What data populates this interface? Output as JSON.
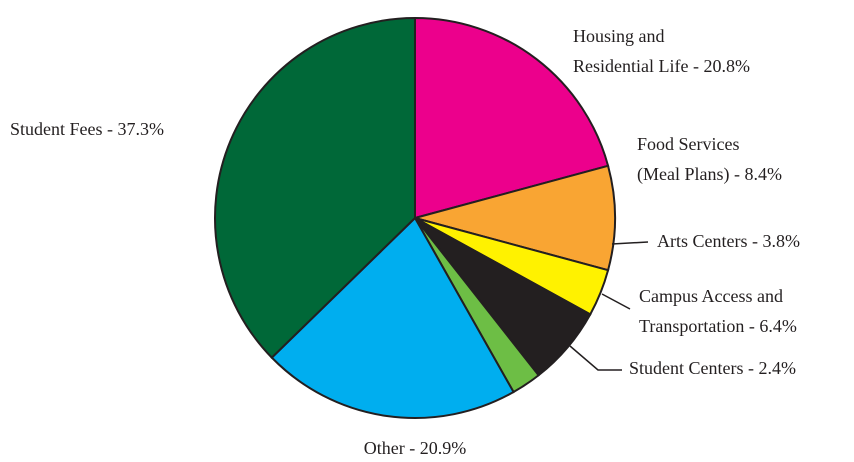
{
  "chart_data": {
    "type": "pie",
    "labels": [
      [
        "Housing and",
        "Residential Life - 20.8%"
      ],
      [
        "Food Services",
        "(Meal Plans) - 8.4%"
      ],
      [
        "Arts Centers -  3.8%"
      ],
      [
        "Campus Access and",
        "Transportation - 6.4%"
      ],
      [
        "Student Centers - 2.4%"
      ],
      [
        "Other - 20.9%"
      ],
      [
        "Student Fees - 37.3%"
      ]
    ],
    "values": [
      20.8,
      8.4,
      3.8,
      6.4,
      2.4,
      20.9,
      37.3
    ],
    "colors": [
      "#ec008c",
      "#f9a533",
      "#fff200",
      "#231f20",
      "#6dbe45",
      "#00aeef",
      "#006838"
    ]
  }
}
